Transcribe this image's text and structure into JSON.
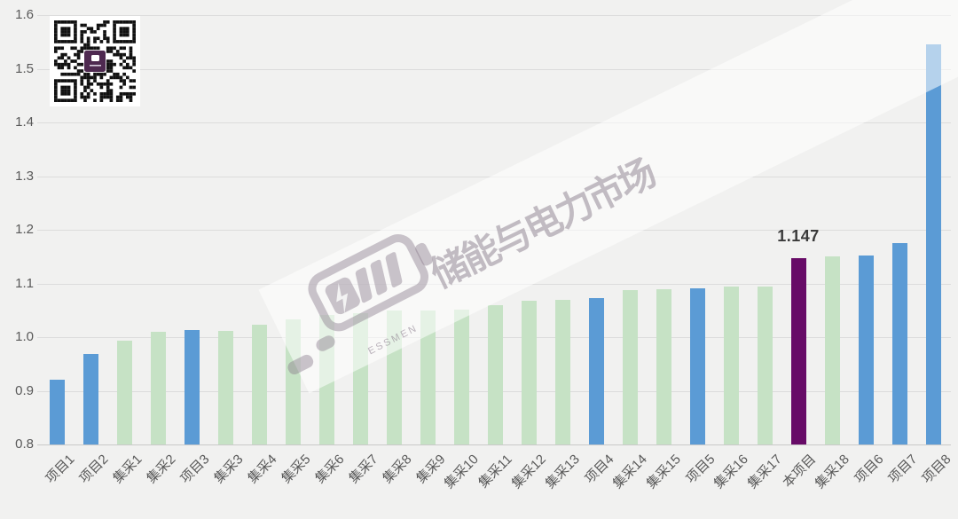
{
  "page": {
    "background": "#f1f1f0"
  },
  "qr": {
    "name": "wechat-qr-code",
    "logo_color": "#4e2950"
  },
  "watermark": {
    "text": "储能与电力市场",
    "subtext": "ESSMEN"
  },
  "chart_data": {
    "type": "bar",
    "title": "",
    "xlabel": "",
    "ylabel": "",
    "categories": [
      "项目1",
      "项目2",
      "集采1",
      "集采2",
      "项目3",
      "集采3",
      "集采4",
      "集采5",
      "集采6",
      "集采7",
      "集采8",
      "集采9",
      "集采10",
      "集采11",
      "集采12",
      "集采13",
      "项目4",
      "集采14",
      "集采15",
      "项目5",
      "集采16",
      "集采17",
      "本项目",
      "集采18",
      "项目6",
      "项目7",
      "项目8"
    ],
    "values": [
      0.92,
      0.969,
      0.993,
      1.01,
      1.013,
      1.012,
      1.023,
      1.033,
      1.041,
      1.044,
      1.049,
      1.049,
      1.051,
      1.059,
      1.067,
      1.07,
      1.072,
      1.088,
      1.089,
      1.091,
      1.095,
      1.095,
      1.147,
      1.15,
      1.152,
      1.175,
      1.545
    ],
    "bar_colors": [
      "blue",
      "blue",
      "green",
      "green",
      "blue",
      "green",
      "green",
      "green",
      "green",
      "green",
      "green",
      "green",
      "green",
      "green",
      "green",
      "green",
      "blue",
      "green",
      "green",
      "blue",
      "green",
      "green",
      "purple",
      "green",
      "blue",
      "blue",
      "blue"
    ],
    "colors": {
      "blue": "#5b9bd5",
      "green": "#c6e2c5",
      "purple": "#670b67"
    },
    "ylim": [
      0.8,
      1.6
    ],
    "yticks": [
      0.8,
      0.9,
      1.0,
      1.1,
      1.2,
      1.3,
      1.4,
      1.5,
      1.6
    ],
    "grid": true,
    "legend": "none",
    "annotated_bar": {
      "category": "本项目",
      "label": "1.147"
    }
  }
}
